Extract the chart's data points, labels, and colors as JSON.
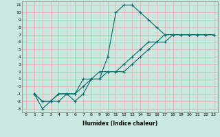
{
  "xlabel": "Humidex (Indice chaleur)",
  "background_color": "#c8e8e0",
  "grid_color": "#e8b0b0",
  "line_color": "#006868",
  "xlim": [
    -0.5,
    23.5
  ],
  "ylim": [
    -3.5,
    11.5
  ],
  "xticks": [
    0,
    1,
    2,
    3,
    4,
    5,
    6,
    7,
    8,
    9,
    10,
    11,
    12,
    13,
    14,
    15,
    16,
    17,
    18,
    19,
    20,
    21,
    22,
    23
  ],
  "yticks": [
    -3,
    -2,
    -1,
    0,
    1,
    2,
    3,
    4,
    5,
    6,
    7,
    8,
    9,
    10,
    11
  ],
  "lines": [
    {
      "x": [
        1,
        2,
        3,
        4,
        5,
        6,
        7,
        8,
        9,
        10,
        11,
        12,
        13,
        14,
        15,
        16,
        17,
        18,
        19,
        20,
        21,
        22,
        23
      ],
      "y": [
        -1,
        -3,
        -2,
        -2,
        -1,
        -2,
        -1,
        1,
        1,
        4,
        10,
        11,
        11,
        10,
        9,
        8,
        7,
        7,
        7,
        7,
        7,
        7,
        7
      ]
    },
    {
      "x": [
        1,
        2,
        3,
        4,
        5,
        6,
        7,
        8,
        9,
        10,
        11,
        12,
        13,
        14,
        15,
        16,
        17,
        18,
        19,
        20,
        21,
        22,
        23
      ],
      "y": [
        -1,
        -2,
        -2,
        -1,
        -1,
        -1,
        0,
        1,
        2,
        2,
        2,
        2,
        3,
        4,
        5,
        6,
        7,
        7,
        7,
        7,
        7,
        7,
        7
      ]
    },
    {
      "x": [
        1,
        2,
        3,
        4,
        5,
        6,
        7,
        8,
        9,
        10,
        11,
        12,
        13,
        14,
        15,
        16,
        17,
        18,
        19,
        20,
        21,
        22,
        23
      ],
      "y": [
        -1,
        -2,
        -2,
        -1,
        -1,
        -1,
        1,
        1,
        1,
        2,
        2,
        3,
        4,
        5,
        6,
        6,
        6,
        7,
        7,
        7,
        7,
        7,
        7
      ]
    }
  ],
  "xlabel_fontsize": 5.5,
  "tick_fontsize": 4.5,
  "xlabel_color": "#000000",
  "xlabel_bold": true
}
